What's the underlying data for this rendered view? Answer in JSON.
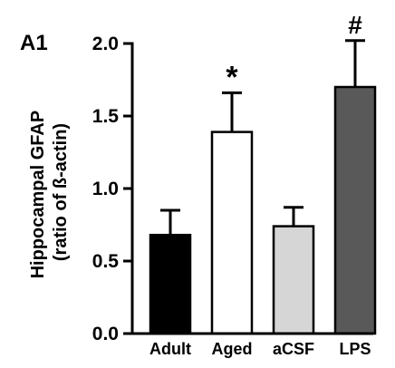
{
  "chart_data": {
    "type": "bar",
    "panel_label": "A1",
    "ylabel_line1": "Hippocampal GFAP",
    "ylabel_line2": "(ratio of ß-actin)",
    "xlabel": "",
    "ylim": [
      0,
      2.0
    ],
    "yticks": [
      "0.0",
      "0.5",
      "1.0",
      "1.5",
      "2.0"
    ],
    "categories": [
      "Adult",
      "Aged",
      "aCSF",
      "LPS"
    ],
    "values": [
      0.68,
      1.39,
      0.74,
      1.7
    ],
    "errors": [
      0.17,
      0.27,
      0.13,
      0.32
    ],
    "annotations": [
      "",
      "*",
      "",
      "#"
    ],
    "colors": [
      "#000000",
      "#ffffff",
      "#d6d6d6",
      "#595959"
    ],
    "grid": false
  }
}
